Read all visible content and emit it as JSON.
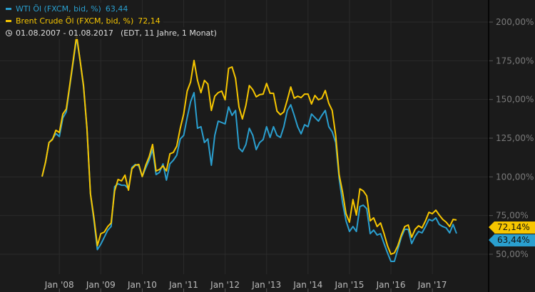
{
  "legend": {
    "wti_label": "WTI Öl (FXCM, bid, %)",
    "wti_value": "63,44",
    "brent_label": "Brent Crude Öl (FXCM, bid, %)",
    "brent_value": "72,14",
    "range": "01.08.2007 - 01.08.2017",
    "range_info": "(EDT, 11 Jahre, 1 Monat)",
    "range_icon": "clock-icon"
  },
  "tags": {
    "brent": "72,14%",
    "wti": "63,44%"
  },
  "colors": {
    "background": "#1b1b1b",
    "wti": "#2a9fcf",
    "brent": "#f7c600",
    "grid": "#2b2b2b",
    "axis_text": "#7a7a7a"
  },
  "chart_data": {
    "type": "line",
    "x_start": "2007-08",
    "x_end": "2017-08",
    "x_frequency": "monthly",
    "x_ticks": [
      "Jan '08",
      "Jan '09",
      "Jan '10",
      "Jan '11",
      "Jan '12",
      "Jan '13",
      "Jan '14",
      "Jan '15",
      "Jan '16",
      "Jan '17"
    ],
    "y_ticks": [
      "200,00%",
      "175,00%",
      "150,00%",
      "125,00%",
      "100,00%",
      "75,00%",
      "50,00%"
    ],
    "y_tick_values": [
      200,
      175,
      150,
      125,
      100,
      75,
      50
    ],
    "ylim": [
      37,
      213
    ],
    "y_axis_position": "right",
    "grid": true,
    "legend_position": "top-left",
    "series": [
      {
        "name": "Brent Crude Öl (FXCM, bid, %)",
        "color": "#f7c600",
        "values": [
          100.2,
          109.4,
          122.2,
          124.1,
          130.1,
          128.7,
          140.6,
          143.8,
          159,
          175.2,
          191.3,
          175.2,
          159,
          131.4,
          89.1,
          73.9,
          55.5,
          63.3,
          64.3,
          67.9,
          70.2,
          90.9,
          98.3,
          97.4,
          101.1,
          91.4,
          105.2,
          107.5,
          108,
          100.2,
          107.5,
          113,
          120.9,
          103.8,
          104.8,
          107.1,
          103.8,
          114.9,
          115.8,
          119.9,
          131.4,
          140.6,
          155.4,
          161.3,
          175.2,
          162.3,
          154.4,
          162.3,
          160,
          142.9,
          152.1,
          154.4,
          155.4,
          149.8,
          170.1,
          171,
          163.6,
          145.2,
          137.4,
          146.2,
          159,
          156.3,
          151.7,
          153.1,
          153.5,
          160.4,
          154,
          154,
          142.5,
          140.2,
          142,
          149.8,
          158.1,
          150.8,
          152.1,
          151.2,
          153.5,
          153.5,
          147.1,
          152.6,
          149.8,
          150.8,
          155.8,
          147.5,
          142.9,
          126.8,
          101.5,
          90,
          76.2,
          70.7,
          85.4,
          75.3,
          92.3,
          90.9,
          87.7,
          71.6,
          73.5,
          67.9,
          70.2,
          63.3,
          55.5,
          50,
          50.9,
          55.5,
          62.4,
          67.9,
          68.9,
          61,
          66.1,
          68.4,
          67,
          71.6,
          77.1,
          76.2,
          78.5,
          75.3,
          72.5,
          70.7,
          67.9,
          72.5,
          72.14
        ]
      },
      {
        "name": "WTI Öl (FXCM, bid, %)",
        "color": "#2a9fcf",
        "values": [
          100.2,
          109.4,
          122.2,
          124.5,
          128,
          126,
          138,
          142,
          158,
          174,
          190,
          175,
          158,
          131,
          89,
          72,
          53,
          56.5,
          61,
          65.5,
          68,
          93.7,
          95.5,
          94.6,
          94.6,
          92.3,
          106.1,
          108,
          107.1,
          100.2,
          105.7,
          110.7,
          117.6,
          101.5,
          102.9,
          108.4,
          97.9,
          108.4,
          110.7,
          114,
          124.5,
          126.8,
          138.3,
          148.5,
          154.4,
          131.4,
          132.4,
          122.2,
          124.5,
          107.5,
          126.8,
          136,
          135.1,
          134.2,
          145.2,
          139.7,
          142.9,
          118.6,
          116.3,
          120.9,
          131.4,
          126.8,
          117.6,
          122.2,
          124.1,
          132.4,
          125.5,
          132.4,
          126.8,
          125.5,
          132.4,
          142.9,
          146.6,
          139.7,
          132.4,
          127.8,
          133.7,
          132.4,
          140.6,
          138.3,
          136,
          139.7,
          142.9,
          132.4,
          129.1,
          122.2,
          99.2,
          83.1,
          71.6,
          64.7,
          67.9,
          64.7,
          80.8,
          81.7,
          79.4,
          63.3,
          65.6,
          62.4,
          63.3,
          56.9,
          50.9,
          45.4,
          45.4,
          53.2,
          61,
          66.1,
          66.1,
          56.9,
          61.5,
          64.7,
          63.8,
          67.9,
          72.5,
          71.6,
          73.5,
          69.3,
          67.9,
          67,
          63.8,
          69.3,
          63.44
        ]
      }
    ]
  }
}
